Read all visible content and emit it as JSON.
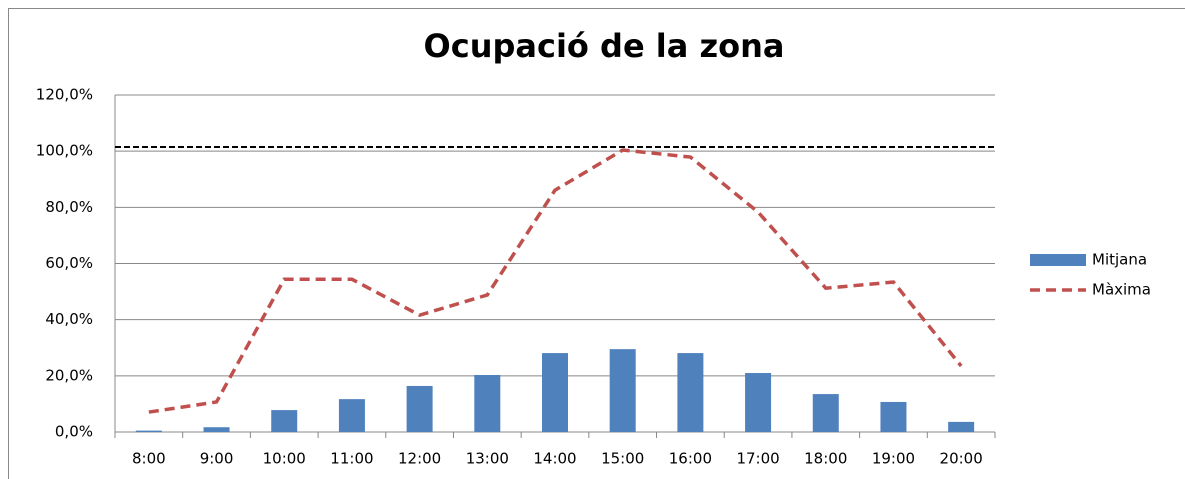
{
  "chart_data": {
    "type": "bar",
    "title": "Ocupació de la zona",
    "categories": [
      "8:00",
      "9:00",
      "10:00",
      "11:00",
      "12:00",
      "13:00",
      "14:00",
      "15:00",
      "16:00",
      "17:00",
      "18:00",
      "19:00",
      "20:00"
    ],
    "series": [
      {
        "name": "Mitjana",
        "type": "bar",
        "color": "#4f81bd",
        "values": [
          0.5,
          1.7,
          7.8,
          11.7,
          16.4,
          20.3,
          28.1,
          29.5,
          28.1,
          21.0,
          13.5,
          10.7,
          3.6
        ]
      },
      {
        "name": "Màxima",
        "type": "line",
        "color": "#c0504d",
        "values": [
          7.1,
          10.7,
          54.4,
          54.4,
          41.6,
          48.8,
          86.1,
          100.4,
          97.9,
          78.3,
          51.2,
          53.4,
          23.5
        ]
      }
    ],
    "reference_line": {
      "value": 101.5,
      "color": "#000000"
    },
    "ylim": [
      0,
      120
    ],
    "yticks": [
      {
        "value": 0,
        "label": "0,0%"
      },
      {
        "value": 20,
        "label": "20,0%"
      },
      {
        "value": 40,
        "label": "40,0%"
      },
      {
        "value": 60,
        "label": "60,0%"
      },
      {
        "value": 80,
        "label": "80,0%"
      },
      {
        "value": 100,
        "label": "100,0%"
      },
      {
        "value": 120,
        "label": "120,0%"
      }
    ],
    "grid": true,
    "legend": "right"
  }
}
